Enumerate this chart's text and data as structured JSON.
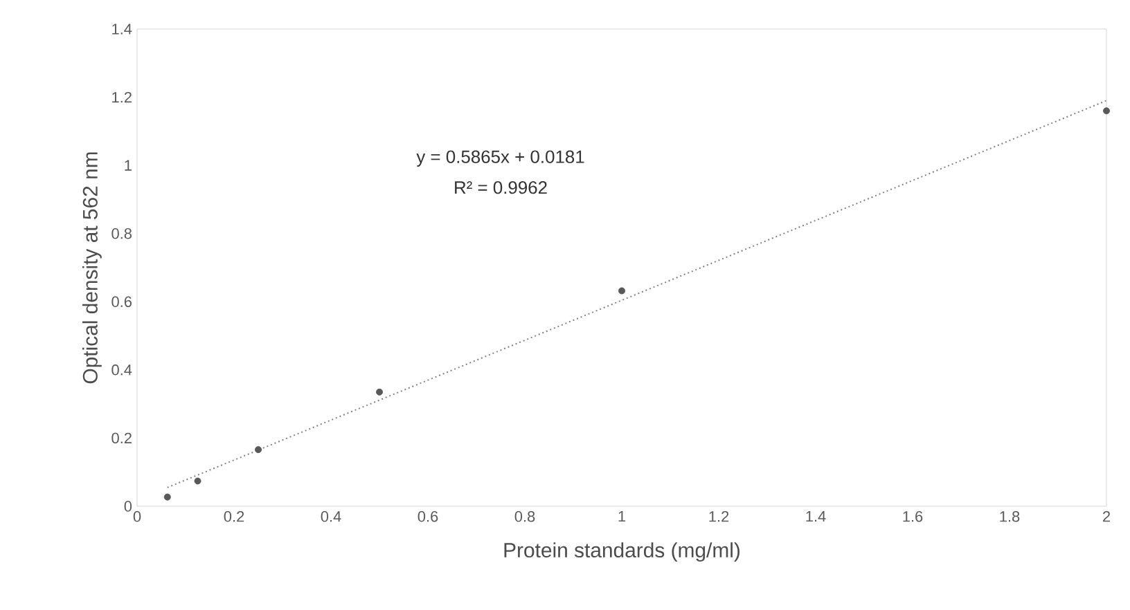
{
  "chart_data": {
    "type": "scatter",
    "xlabel": "Protein standards (mg/ml)",
    "ylabel": "Optical density at 562 nm",
    "annotations": [
      "y = 0.5865x + 0.0181",
      "R² = 0.9962"
    ],
    "series": [
      {
        "color": "#595959",
        "marker": "circle",
        "x": [
          0.0625,
          0.125,
          0.25,
          0.5,
          1,
          2
        ],
        "values": [
          0.027,
          0.074,
          0.166,
          0.335,
          0.632,
          1.16
        ]
      },
      {
        "type": "line",
        "color": "#808080",
        "marker": "none",
        "line_style": "dotted",
        "x": [
          0.0625,
          2
        ],
        "values": [
          0.055,
          1.19
        ]
      }
    ],
    "xlim": [
      0,
      2
    ],
    "ylim": [
      0,
      1.4
    ],
    "xticks": [
      0,
      0.2,
      0.4,
      0.6,
      0.8,
      1,
      1.2,
      1.4,
      1.6,
      1.8,
      2
    ],
    "yticks": [
      0,
      0.2,
      0.4,
      0.6,
      0.8,
      1,
      1.2,
      1.4
    ]
  }
}
